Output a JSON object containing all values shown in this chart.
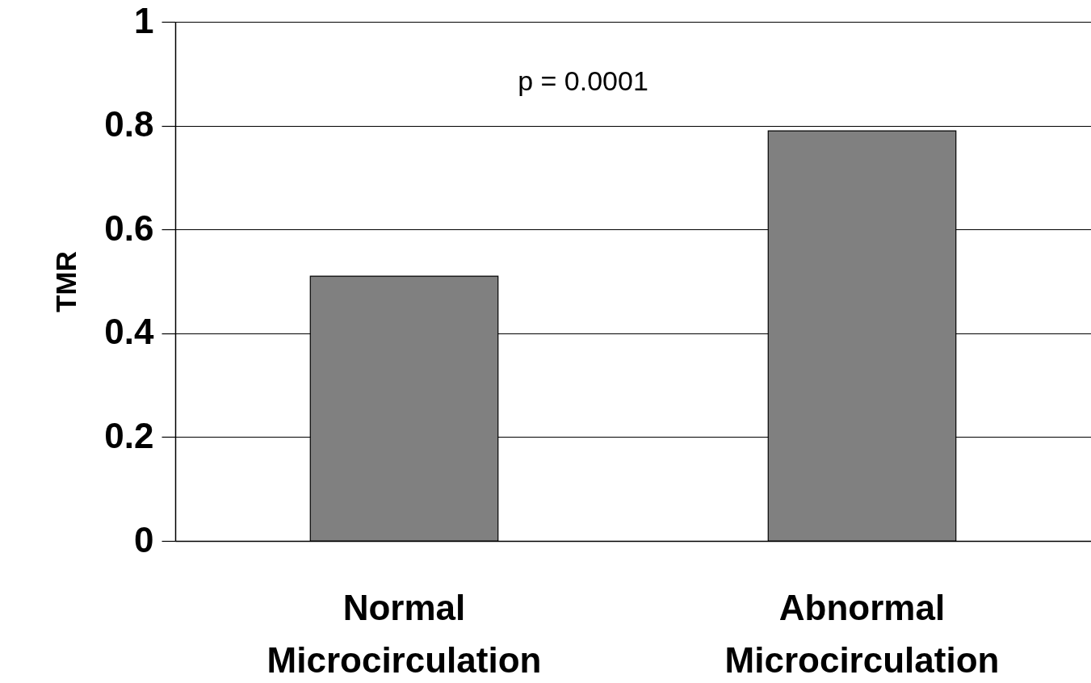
{
  "chart_data": {
    "type": "bar",
    "ylabel": "TMR",
    "categories": [
      "Normal Microcirculation",
      "Abnormal Microcirculation"
    ],
    "values": [
      0.51,
      0.79
    ],
    "color": "#808080",
    "ylim": [
      0,
      1
    ],
    "yticks": [
      0,
      {
        "value": 0.2,
        "label": "0.2"
      },
      {
        "value": 0.4,
        "label": "0.4"
      },
      {
        "value": 0.6,
        "label": "0.6"
      },
      {
        "value": 0.8,
        "label": "0.8"
      },
      1
    ],
    "grid": "y",
    "annotations": [
      "p = 0.0001"
    ]
  }
}
